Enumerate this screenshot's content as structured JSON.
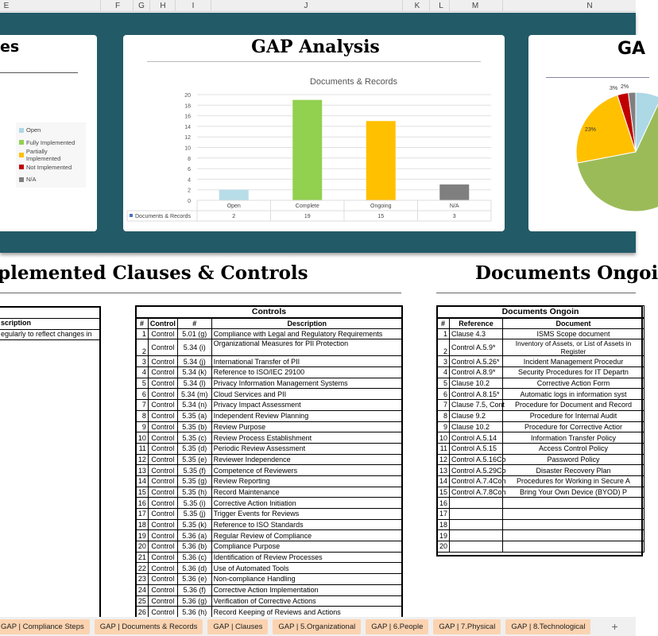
{
  "columns": [
    "E",
    "F",
    "G",
    "H",
    "I",
    "J",
    "K",
    "L",
    "M",
    "N"
  ],
  "dashboard": {
    "left_card": {
      "title_fragment": "es",
      "legend": [
        {
          "label": "Open",
          "color": "#add8e6"
        },
        {
          "label": "Fully Implemented",
          "color": "#92d050"
        },
        {
          "label": "Partially Implemented",
          "color": "#ffc000"
        },
        {
          "label": "Not Implemented",
          "color": "#c00000"
        },
        {
          "label": "N/A",
          "color": "#808080"
        }
      ]
    },
    "center_card": {
      "title": "GAP Analysis"
    },
    "right_card": {
      "title_fragment": "GA",
      "pie_labels": [
        {
          "label": "23%",
          "slice": "Partially Implemented"
        },
        {
          "label": "3%",
          "slice": "Not Implemented"
        },
        {
          "label": "2%",
          "slice": "N/A"
        }
      ],
      "colors": {
        "open": "#add8e6",
        "fully": "#9bbb59",
        "partial": "#ffc000",
        "not": "#c00000",
        "na": "#808080"
      }
    }
  },
  "chart_data": {
    "type": "bar",
    "title": "Documents & Records",
    "categories": [
      "Open",
      "Complete",
      "Ongoing",
      "N/A"
    ],
    "series": [
      {
        "name": "Documents & Records",
        "values": [
          2,
          19,
          15,
          3
        ]
      }
    ],
    "colors": [
      "#b7dde8",
      "#92d050",
      "#ffc000",
      "#7f7f7f"
    ],
    "ylim": [
      0,
      20
    ],
    "yticks": [
      0,
      2,
      4,
      6,
      8,
      10,
      12,
      14,
      16,
      18,
      20
    ],
    "grid": true,
    "data_table": true
  },
  "sections": {
    "left_heading": "plemented Clauses & Controls",
    "right_heading": "Documents Ongoi"
  },
  "left_table": {
    "header": "scription",
    "rows": [
      "egularly to reflect changes in"
    ]
  },
  "controls_table": {
    "title": "Controls",
    "headers": [
      "#",
      "Control",
      "#",
      "Description"
    ],
    "rows": [
      [
        "1",
        "Control",
        "5.01 (g)",
        "Compliance with Legal and Regulatory Requirements"
      ],
      [
        "2",
        "Control",
        "5.34 (i)",
        "Organizational Measures for PII Protection"
      ],
      [
        "3",
        "Control",
        "5.34 (j)",
        "International Transfer of PII"
      ],
      [
        "4",
        "Control",
        "5.34 (k)",
        "Reference to ISO/IEC 29100"
      ],
      [
        "5",
        "Control",
        "5.34 (l)",
        "Privacy Information Management Systems"
      ],
      [
        "6",
        "Control",
        "5.34 (m)",
        "Cloud Services and PII"
      ],
      [
        "7",
        "Control",
        "5.34 (n)",
        "Privacy Impact Assessment"
      ],
      [
        "8",
        "Control",
        "5.35 (a)",
        "Independent Review Planning"
      ],
      [
        "9",
        "Control",
        "5.35 (b)",
        "Review Purpose"
      ],
      [
        "10",
        "Control",
        "5.35 (c)",
        "Review Process Establishment"
      ],
      [
        "11",
        "Control",
        "5.35 (d)",
        "Periodic Review Assessment"
      ],
      [
        "12",
        "Control",
        "5.35 (e)",
        "Reviewer Independence"
      ],
      [
        "13",
        "Control",
        "5.35 (f)",
        "Competence of Reviewers"
      ],
      [
        "14",
        "Control",
        "5.35 (g)",
        "Review Reporting"
      ],
      [
        "15",
        "Control",
        "5.35 (h)",
        "Record Maintenance"
      ],
      [
        "16",
        "Control",
        "5.35 (i)",
        "Corrective Action Initiation"
      ],
      [
        "17",
        "Control",
        "5.35 (j)",
        "Trigger Events for Reviews"
      ],
      [
        "18",
        "Control",
        "5.35 (k)",
        "Reference to ISO Standards"
      ],
      [
        "19",
        "Control",
        "5.36 (a)",
        "Regular Review of Compliance"
      ],
      [
        "20",
        "Control",
        "5.36 (b)",
        "Compliance Purpose"
      ],
      [
        "21",
        "Control",
        "5.36 (c)",
        "Identification of Review Processes"
      ],
      [
        "22",
        "Control",
        "5.36 (d)",
        "Use of Automated Tools"
      ],
      [
        "23",
        "Control",
        "5.36 (e)",
        "Non-compliance Handling"
      ],
      [
        "24",
        "Control",
        "5.36 (f)",
        "Corrective Action Implementation"
      ],
      [
        "25",
        "Control",
        "5.36 (g)",
        "Verification of Corrective Actions"
      ],
      [
        "26",
        "Control",
        "5.36 (h)",
        "Record Keeping of Reviews and Actions"
      ]
    ]
  },
  "documents_table": {
    "title": "Documents Ongoin",
    "headers": [
      "#",
      "Reference",
      "Document"
    ],
    "rows": [
      [
        "1",
        "Clause 4.3",
        "ISMS Scope document"
      ],
      [
        "2",
        "Control A.5.9*",
        "Inventory of Assets, or List of Assets in Register"
      ],
      [
        "3",
        "Control A.5.26*",
        "Incident Management Procedur"
      ],
      [
        "4",
        "Control A.8.9*",
        "Security Procedures for IT Departn"
      ],
      [
        "5",
        "Clause 10.2",
        "Corrective Action Form"
      ],
      [
        "6",
        "Control A.8.15*",
        "Automatic logs in information syst"
      ],
      [
        "7",
        "Clause 7.5, Cont",
        "Procedure for Document and Record"
      ],
      [
        "8",
        "Clause 9.2",
        "Procedure for Internal Audit"
      ],
      [
        "9",
        "Clause 10.2",
        "Procedure for Corrective Actior"
      ],
      [
        "10",
        "Control A.5.14",
        "Information Transfer Policy"
      ],
      [
        "11",
        "Control A.5.15",
        "Access Control Policy"
      ],
      [
        "12",
        "Control A.5.16Co",
        "Password Policy"
      ],
      [
        "13",
        "Control A.5.29Co",
        "Disaster Recovery Plan"
      ],
      [
        "14",
        "Control A.7.4Con",
        "Procedures for Working in Secure A"
      ],
      [
        "15",
        "Control A.7.8Con",
        "Bring Your Own Device (BYOD) P"
      ],
      [
        "16",
        "",
        ""
      ],
      [
        "17",
        "",
        ""
      ],
      [
        "18",
        "",
        ""
      ],
      [
        "19",
        "",
        ""
      ],
      [
        "20",
        "",
        ""
      ]
    ]
  },
  "sheet_tabs": [
    "GAP | Compliance Steps",
    "GAP | Documents & Records",
    "GAP | Clauses",
    "GAP | 5.Organizational",
    "GAP | 6.People",
    "GAP | 7.Physical",
    "GAP | 8.Technological"
  ],
  "add_sheet_label": "+"
}
